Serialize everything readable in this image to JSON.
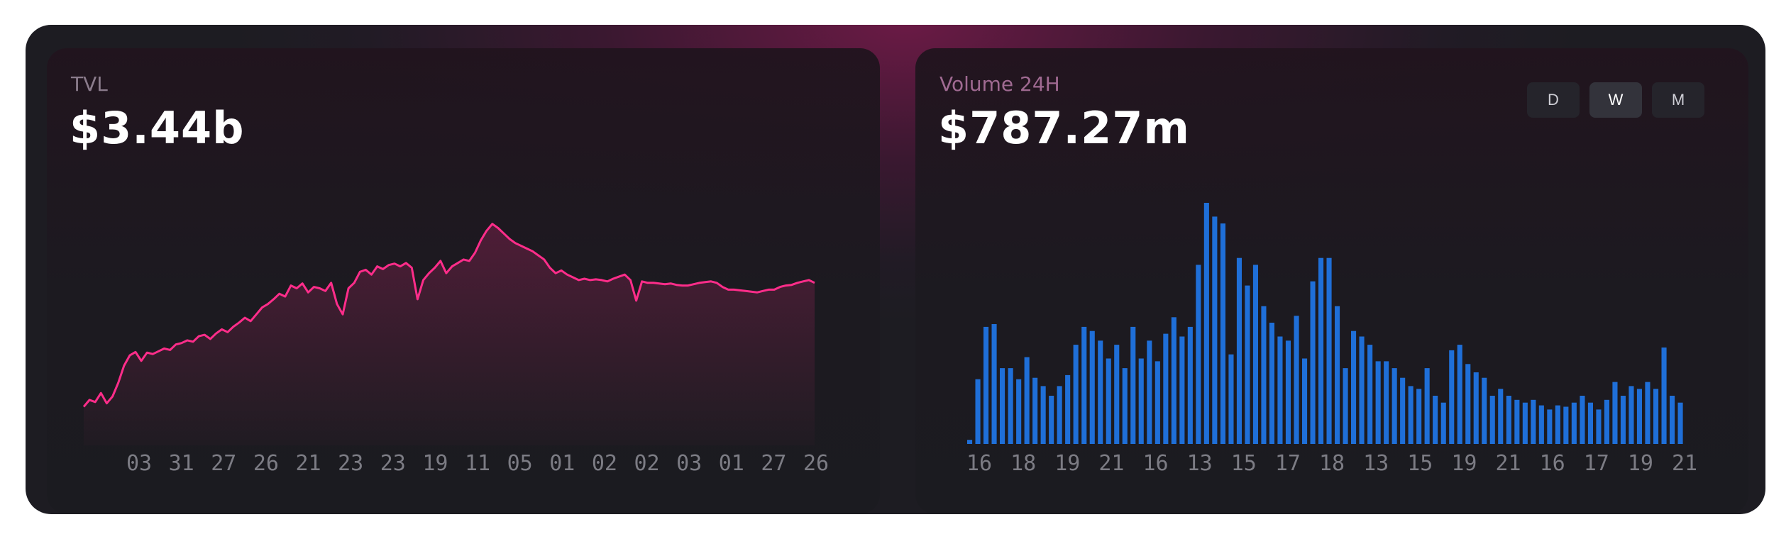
{
  "tvl": {
    "label": "TVL",
    "value": "$3.44b"
  },
  "volume": {
    "label": "Volume 24H",
    "value": "$787.27m",
    "tabs": [
      {
        "label": "D",
        "active": false
      },
      {
        "label": "W",
        "active": true
      },
      {
        "label": "M",
        "active": false
      }
    ]
  },
  "colors": {
    "tvl_line": "#ff2d8a",
    "volume_bar": "#1f6fd8"
  },
  "chart_data": [
    {
      "type": "area",
      "title": "TVL",
      "x_tick_labels": [
        "03",
        "31",
        "27",
        "26",
        "21",
        "23",
        "23",
        "19",
        "11",
        "05",
        "01",
        "02",
        "02",
        "03",
        "01",
        "27",
        "26"
      ],
      "values": [
        1.05,
        1.15,
        1.12,
        1.25,
        1.1,
        1.2,
        1.4,
        1.65,
        1.8,
        1.85,
        1.72,
        1.84,
        1.82,
        1.86,
        1.9,
        1.88,
        1.96,
        1.98,
        2.02,
        2.0,
        2.08,
        2.1,
        2.04,
        2.12,
        2.18,
        2.14,
        2.22,
        2.28,
        2.35,
        2.3,
        2.4,
        2.5,
        2.55,
        2.62,
        2.7,
        2.66,
        2.82,
        2.78,
        2.85,
        2.72,
        2.8,
        2.78,
        2.74,
        2.86,
        2.55,
        2.4,
        2.78,
        2.86,
        3.02,
        3.05,
        2.98,
        3.1,
        3.06,
        3.12,
        3.14,
        3.1,
        3.15,
        3.08,
        2.62,
        2.9,
        3.0,
        3.08,
        3.18,
        3.0,
        3.1,
        3.15,
        3.2,
        3.18,
        3.3,
        3.48,
        3.62,
        3.72,
        3.66,
        3.58,
        3.5,
        3.44,
        3.4,
        3.36,
        3.32,
        3.26,
        3.2,
        3.08,
        3.0,
        3.04,
        2.98,
        2.94,
        2.9,
        2.92,
        2.9,
        2.91,
        2.9,
        2.88,
        2.92,
        2.95,
        2.98,
        2.9,
        2.6,
        2.88,
        2.86,
        2.86,
        2.85,
        2.84,
        2.85,
        2.83,
        2.82,
        2.82,
        2.84,
        2.86,
        2.87,
        2.88,
        2.86,
        2.8,
        2.76,
        2.76,
        2.75,
        2.74,
        2.73,
        2.72,
        2.74,
        2.76,
        2.76,
        2.8,
        2.82,
        2.83,
        2.86,
        2.88,
        2.9,
        2.86
      ]
    },
    {
      "type": "bar",
      "title": "Volume 24H",
      "x_tick_labels": [
        "16",
        "18",
        "19",
        "21",
        "16",
        "13",
        "15",
        "17",
        "18",
        "13",
        "15",
        "19",
        "21",
        "16",
        "17",
        "19",
        "21"
      ],
      "values": [
        0.03,
        0.47,
        0.85,
        0.87,
        0.55,
        0.55,
        0.47,
        0.63,
        0.48,
        0.42,
        0.35,
        0.42,
        0.5,
        0.72,
        0.85,
        0.82,
        0.75,
        0.62,
        0.72,
        0.55,
        0.85,
        0.62,
        0.75,
        0.6,
        0.8,
        0.92,
        0.78,
        0.85,
        1.3,
        1.75,
        1.65,
        1.6,
        0.65,
        1.35,
        1.15,
        1.3,
        1.0,
        0.88,
        0.78,
        0.75,
        0.93,
        0.62,
        1.18,
        1.35,
        1.35,
        1.0,
        0.55,
        0.82,
        0.78,
        0.72,
        0.6,
        0.6,
        0.55,
        0.48,
        0.42,
        0.4,
        0.55,
        0.35,
        0.3,
        0.68,
        0.72,
        0.58,
        0.52,
        0.48,
        0.35,
        0.4,
        0.35,
        0.32,
        0.3,
        0.32,
        0.28,
        0.25,
        0.28,
        0.27,
        0.3,
        0.35,
        0.3,
        0.25,
        0.32,
        0.45,
        0.35,
        0.42,
        0.4,
        0.45,
        0.4,
        0.7,
        0.35,
        0.3
      ]
    }
  ]
}
